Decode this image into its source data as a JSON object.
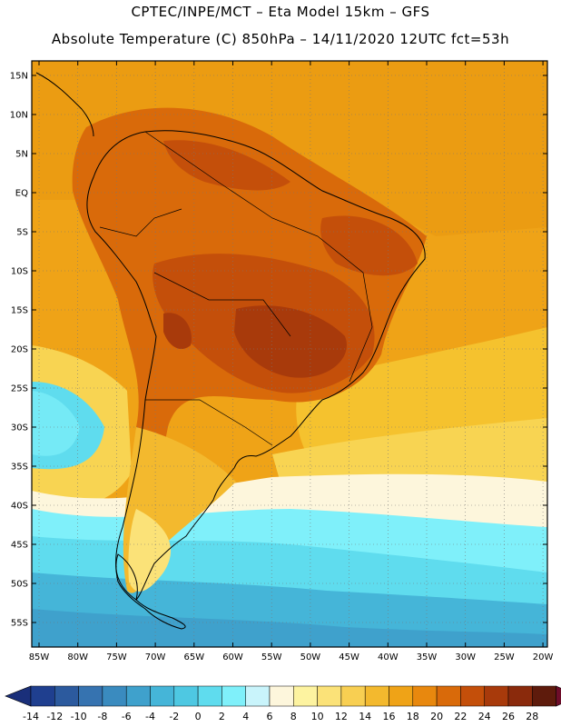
{
  "header": {
    "line1": "CPTEC/INPE/MCT –  Eta Model 15km – GFS",
    "line2": "Absolute Temperature (C) 850hPa – 14/11/2020 12UTC fct=53h"
  },
  "axes": {
    "lat_labels": [
      "15N",
      "10N",
      "5N",
      "EQ",
      "5S",
      "10S",
      "15S",
      "20S",
      "25S",
      "30S",
      "35S",
      "40S",
      "45S",
      "50S",
      "55S"
    ],
    "lon_labels": [
      "85W",
      "80W",
      "75W",
      "70W",
      "65W",
      "60W",
      "55W",
      "50W",
      "45W",
      "40W",
      "35W",
      "30W",
      "25W",
      "20W"
    ]
  },
  "colorbar": {
    "labels": [
      "-14",
      "-12",
      "-10",
      "-8",
      "-6",
      "-4",
      "-2",
      "0",
      "2",
      "4",
      "6",
      "8",
      "10",
      "12",
      "14",
      "16",
      "18",
      "20",
      "22",
      "24",
      "26",
      "28"
    ],
    "colors": [
      "#1f3f8f",
      "#2c5a9e",
      "#3673b0",
      "#3a8bbf",
      "#3fa1cc",
      "#45b5d8",
      "#4ec8e2",
      "#5fdcee",
      "#7ff0fa",
      "#c9f4fb",
      "#fdf6dc",
      "#fdf3a0",
      "#fbe278",
      "#f8cf52",
      "#f3b92e",
      "#efa317",
      "#e8880e",
      "#d96a0a",
      "#c44f0a",
      "#a83a0b",
      "#8a2a0c",
      "#5e1b0c"
    ],
    "under_color": "#1a2f7a",
    "over_color": "#6e0d2a"
  },
  "chart_data": {
    "type": "heatmap",
    "title": "Absolute Temperature (C) 850hPa – 14/11/2020 12UTC fct=53h",
    "source": "CPTEC/INPE/MCT – Eta Model 15km – GFS",
    "units": "C",
    "level": "850hPa",
    "lon_range": [
      -85,
      -20
    ],
    "lat_range": [
      -57.5,
      16
    ],
    "color_levels": [
      -14,
      -12,
      -10,
      -8,
      -6,
      -4,
      -2,
      0,
      2,
      4,
      6,
      8,
      10,
      12,
      14,
      16,
      18,
      20,
      22,
      24,
      26,
      28
    ]
  }
}
